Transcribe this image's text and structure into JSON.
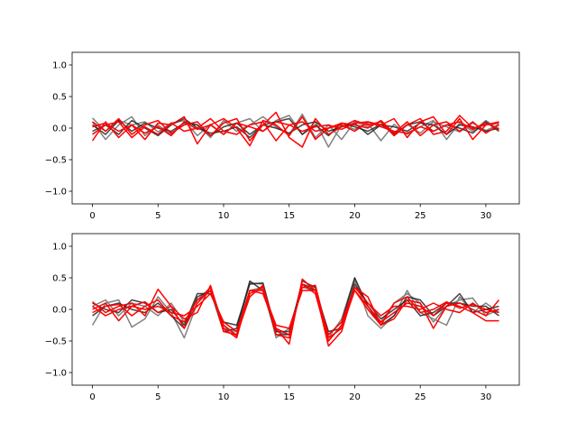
{
  "chart_data": [
    {
      "type": "line",
      "title": "",
      "xlabel": "",
      "ylabel": "",
      "xlim": [
        -1.55,
        32.55
      ],
      "ylim": [
        -1.2,
        1.2
      ],
      "xticks": [
        0,
        5,
        10,
        15,
        20,
        25,
        30
      ],
      "xtick_labels": [
        "0",
        "5",
        "10",
        "15",
        "20",
        "25",
        "30"
      ],
      "yticks": [
        -1.0,
        -0.5,
        0.0,
        0.5,
        1.0
      ],
      "ytick_labels": [
        "−1.0",
        "−0.5",
        "0.0",
        "0.5",
        "1.0"
      ],
      "grid": false,
      "colors": {
        "gray": "#808080",
        "dark": "#222222",
        "red": "#ff0000"
      },
      "series": [
        {
          "color": "gray",
          "values": [
            0.16,
            -0.05,
            0.12,
            0.05,
            0.1,
            -0.06,
            0.08,
            0.12,
            -0.12,
            0.06,
            -0.1,
            0.08,
            0.15,
            -0.05,
            0.12,
            0.2,
            -0.1,
            0.1,
            -0.3,
            0.05,
            -0.02,
            0.08,
            -0.2,
            0.06,
            -0.1,
            0.02,
            0.12,
            -0.18,
            0.08,
            -0.05,
            0.12,
            -0.02
          ]
        },
        {
          "color": "gray",
          "values": [
            0.1,
            -0.18,
            0.05,
            0.18,
            -0.12,
            0.05,
            -0.1,
            0.1,
            0.05,
            -0.15,
            0.12,
            -0.05,
            0.05,
            0.18,
            0.02,
            -0.1,
            0.22,
            -0.15,
            0.05,
            -0.18,
            0.1,
            0.02,
            0.1,
            -0.12,
            0.06,
            -0.08,
            0.1,
            0.02,
            -0.06,
            0.08,
            -0.04,
            0.06
          ]
        },
        {
          "color": "dark",
          "values": [
            -0.05,
            0.05,
            -0.1,
            0.12,
            0.0,
            -0.12,
            0.05,
            0.15,
            0.0,
            -0.08,
            -0.05,
            0.02,
            -0.15,
            0.05,
            0.1,
            0.15,
            -0.1,
            0.05,
            -0.12,
            0.08,
            0.02,
            -0.05,
            0.06,
            -0.1,
            0.05,
            0.1,
            -0.05,
            0.05,
            0.0,
            -0.08,
            0.1,
            -0.05
          ]
        },
        {
          "color": "dark",
          "values": [
            0.05,
            -0.1,
            0.12,
            -0.05,
            0.08,
            0.0,
            -0.05,
            0.08,
            0.05,
            -0.12,
            0.02,
            0.08,
            -0.1,
            0.05,
            0.0,
            -0.08,
            0.05,
            0.1,
            -0.05,
            0.02,
            0.08,
            -0.1,
            0.05,
            0.02,
            -0.05,
            0.08,
            0.05,
            -0.1,
            0.05,
            0.02,
            -0.05,
            0.0
          ]
        },
        {
          "color": "red",
          "values": [
            -0.2,
            0.1,
            -0.15,
            0.05,
            -0.18,
            0.08,
            0.05,
            0.18,
            -0.25,
            0.05,
            0.15,
            0.0,
            -0.28,
            0.12,
            0.05,
            -0.12,
            0.18,
            -0.18,
            0.0,
            0.05,
            -0.05,
            0.1,
            0.05,
            0.15,
            -0.15,
            0.1,
            0.18,
            -0.1,
            0.15,
            -0.18,
            0.05,
            0.08
          ]
        },
        {
          "color": "red",
          "values": [
            0.1,
            -0.05,
            0.15,
            -0.1,
            0.05,
            0.12,
            -0.08,
            0.05,
            0.1,
            -0.12,
            0.08,
            0.15,
            -0.2,
            0.05,
            0.25,
            -0.15,
            -0.3,
            0.15,
            -0.1,
            0.02,
            0.12,
            0.05,
            0.1,
            -0.12,
            0.05,
            0.15,
            -0.1,
            -0.05,
            0.2,
            0.0,
            0.05,
            0.1
          ]
        },
        {
          "color": "red",
          "values": [
            -0.1,
            0.05,
            0.1,
            -0.15,
            0.02,
            -0.1,
            0.08,
            -0.05,
            0.0,
            0.15,
            -0.05,
            -0.1,
            0.05,
            0.1,
            -0.2,
            0.05,
            0.1,
            -0.05,
            0.0,
            0.08,
            0.05,
            0.0,
            0.12,
            -0.08,
            0.1,
            -0.12,
            0.05,
            0.1,
            -0.05,
            0.1,
            -0.08,
            0.05
          ]
        },
        {
          "color": "red",
          "values": [
            0.02,
            0.08,
            -0.05,
            0.05,
            -0.08,
            0.02,
            -0.12,
            0.1,
            -0.02,
            0.05,
            -0.1,
            0.08,
            0.02,
            -0.05,
            0.1,
            0.05,
            -0.05,
            0.02,
            0.05,
            -0.02,
            0.08,
            0.1,
            0.02,
            -0.05,
            -0.08,
            0.02,
            -0.05,
            0.05,
            0.1,
            -0.02,
            0.08,
            -0.02
          ]
        }
      ]
    },
    {
      "type": "line",
      "title": "",
      "xlabel": "",
      "ylabel": "",
      "xlim": [
        -1.55,
        32.55
      ],
      "ylim": [
        -1.2,
        1.2
      ],
      "xticks": [
        0,
        5,
        10,
        15,
        20,
        25,
        30
      ],
      "xtick_labels": [
        "0",
        "5",
        "10",
        "15",
        "20",
        "25",
        "30"
      ],
      "yticks": [
        -1.0,
        -0.5,
        0.0,
        0.5,
        1.0
      ],
      "ytick_labels": [
        "−1.0",
        "−0.5",
        "0.0",
        "0.5",
        "1.0"
      ],
      "grid": false,
      "colors": {
        "gray": "#808080",
        "dark": "#222222",
        "red": "#ff0000"
      },
      "series": [
        {
          "color": "gray",
          "values": [
            -0.25,
            0.1,
            0.15,
            -0.28,
            -0.15,
            0.2,
            -0.05,
            -0.45,
            0.1,
            0.3,
            -0.3,
            -0.35,
            0.42,
            0.4,
            -0.45,
            -0.3,
            0.35,
            0.3,
            -0.45,
            -0.15,
            0.5,
            -0.1,
            -0.3,
            -0.1,
            0.3,
            -0.05,
            -0.15,
            -0.25,
            0.2,
            -0.05,
            0.1,
            -0.05
          ]
        },
        {
          "color": "gray",
          "values": [
            0.05,
            0.15,
            -0.1,
            0.1,
            0.05,
            -0.1,
            0.1,
            -0.2,
            0.15,
            0.35,
            -0.25,
            -0.4,
            0.3,
            0.35,
            -0.35,
            -0.4,
            0.4,
            0.35,
            -0.5,
            -0.25,
            0.45,
            0.05,
            -0.2,
            0.1,
            0.25,
            0.1,
            -0.2,
            0.05,
            0.15,
            0.18,
            -0.1,
            0.0
          ]
        },
        {
          "color": "dark",
          "values": [
            -0.1,
            0.05,
            0.1,
            0.0,
            -0.05,
            0.1,
            -0.1,
            -0.3,
            0.2,
            0.3,
            -0.35,
            -0.3,
            0.45,
            0.3,
            -0.4,
            -0.4,
            0.45,
            0.35,
            -0.4,
            -0.2,
            0.5,
            0.05,
            -0.25,
            -0.1,
            0.2,
            0.15,
            -0.1,
            0.05,
            0.25,
            -0.05,
            0.0,
            0.05
          ]
        },
        {
          "color": "dark",
          "values": [
            0.1,
            0.0,
            -0.05,
            0.15,
            0.1,
            -0.05,
            0.0,
            -0.25,
            0.25,
            0.25,
            -0.2,
            -0.25,
            0.4,
            0.42,
            -0.35,
            -0.35,
            0.4,
            0.3,
            -0.35,
            -0.3,
            0.4,
            0.1,
            -0.15,
            0.0,
            0.15,
            -0.1,
            -0.05,
            0.1,
            0.1,
            0.05,
            0.05,
            -0.1
          ]
        },
        {
          "color": "red",
          "values": [
            0.12,
            -0.05,
            0.05,
            0.1,
            -0.1,
            0.32,
            0.05,
            -0.15,
            -0.05,
            0.38,
            -0.3,
            -0.45,
            0.3,
            0.25,
            -0.3,
            -0.55,
            0.48,
            0.3,
            -0.58,
            -0.35,
            0.35,
            0.2,
            -0.25,
            -0.15,
            0.15,
            0.1,
            -0.3,
            0.05,
            0.1,
            0.0,
            -0.1,
            0.15
          ]
        },
        {
          "color": "red",
          "values": [
            0.0,
            0.1,
            -0.18,
            0.05,
            0.12,
            -0.05,
            0.05,
            -0.3,
            0.1,
            0.35,
            -0.35,
            -0.4,
            0.2,
            0.38,
            -0.4,
            -0.45,
            0.4,
            0.25,
            -0.5,
            -0.25,
            0.3,
            0.05,
            -0.2,
            -0.05,
            0.1,
            0.05,
            -0.1,
            0.1,
            0.05,
            -0.05,
            -0.18,
            -0.18
          ]
        },
        {
          "color": "red",
          "values": [
            -0.05,
            0.05,
            0.08,
            -0.1,
            0.05,
            0.15,
            -0.1,
            -0.2,
            0.15,
            0.3,
            -0.25,
            -0.42,
            0.25,
            0.35,
            -0.3,
            -0.4,
            0.35,
            0.38,
            -0.45,
            -0.3,
            0.3,
            0.0,
            -0.25,
            0.1,
            0.2,
            -0.05,
            0.0,
            0.12,
            0.02,
            0.08,
            0.0,
            -0.05
          ]
        },
        {
          "color": "red",
          "values": [
            0.05,
            -0.1,
            0.0,
            0.05,
            0.0,
            0.05,
            -0.05,
            -0.1,
            0.05,
            0.25,
            -0.2,
            -0.35,
            0.3,
            0.3,
            -0.25,
            -0.3,
            0.3,
            0.3,
            -0.4,
            -0.2,
            0.35,
            0.1,
            -0.1,
            0.05,
            0.05,
            0.0,
            0.1,
            0.0,
            -0.05,
            0.1,
            -0.05,
            0.0
          ]
        }
      ]
    }
  ]
}
